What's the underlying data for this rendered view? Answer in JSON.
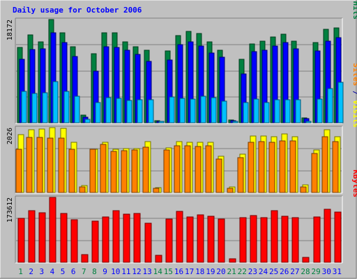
{
  "chart_data": {
    "type": "bar",
    "title": "Daily usage for October 2006",
    "categories": [
      "1",
      "2",
      "3",
      "4",
      "5",
      "6",
      "7",
      "8",
      "9",
      "10",
      "11",
      "12",
      "13",
      "14",
      "15",
      "16",
      "17",
      "18",
      "19",
      "20",
      "21",
      "22",
      "23",
      "24",
      "25",
      "26",
      "27",
      "28",
      "29",
      "30",
      "31"
    ],
    "weekend_days": [
      "1",
      "7",
      "8",
      "14",
      "15",
      "21",
      "22",
      "28",
      "29"
    ],
    "panels": [
      {
        "id": "hits",
        "ymax_label": "18172",
        "ymax": 18172,
        "series": [
          {
            "name": "Hits",
            "color": "#008040",
            "values": [
              13200,
              15500,
              14200,
              18172,
              15800,
              13400,
              1400,
              12100,
              15800,
              15900,
              14300,
              13400,
              12800,
              400,
              12700,
              15400,
              16100,
              15700,
              14300,
              12800,
              500,
              11200,
              13900,
              14400,
              15100,
              15600,
              14400,
              900,
              14100,
              16500,
              16700
            ]
          },
          {
            "name": "Files",
            "color": "#0000ff",
            "values": [
              11200,
              12900,
              13000,
              15800,
              14100,
              11700,
              1000,
              9100,
              13400,
              13200,
              12800,
              12000,
              10800,
              300,
              11000,
              13800,
              14300,
              13500,
              12300,
              11500,
              400,
              8600,
              12500,
              12800,
              13500,
              14100,
              13000,
              700,
              12600,
              14400,
              15000
            ]
          },
          {
            "name": "Pages",
            "color": "#00c0ff",
            "values": [
              5500,
              5200,
              5300,
              7300,
              5500,
              4700,
              600,
              3500,
              4400,
              4300,
              3900,
              4100,
              4100,
              200,
              4500,
              4300,
              4200,
              4700,
              4400,
              3800,
              200,
              3600,
              4200,
              3600,
              4000,
              4100,
              4100,
              300,
              4200,
              6000,
              7100
            ]
          }
        ]
      },
      {
        "id": "visits",
        "ymax_label": "2026",
        "ymax": 2026,
        "series": [
          {
            "name": "Visits",
            "color": "#ffff00",
            "values": [
              1800,
              1950,
              1980,
              2026,
              2010,
              1560,
              220,
              1360,
              1570,
              1350,
              1380,
              1370,
              1600,
              160,
              1390,
              1600,
              1560,
              1560,
              1570,
              1130,
              170,
              1190,
              1760,
              1760,
              1750,
              1840,
              1750,
              230,
              1320,
              1950,
              1750
            ]
          },
          {
            "name": "Sites",
            "color": "#ff8000",
            "values": [
              1350,
              1720,
              1720,
              1710,
              1700,
              1350,
              170,
              1350,
              1510,
              1290,
              1310,
              1320,
              1420,
              120,
              1320,
              1470,
              1470,
              1430,
              1460,
              1050,
              130,
              1100,
              1570,
              1600,
              1570,
              1620,
              1610,
              180,
              1220,
              1750,
              1600
            ]
          }
        ]
      },
      {
        "id": "kbytes",
        "ymax_label": "173612",
        "ymax": 173612,
        "series": [
          {
            "name": "KBytes",
            "color": "#ff0000",
            "values": [
              117000,
              138000,
              132000,
              173612,
              131000,
              113000,
              21000,
              110000,
              122000,
              139000,
              129000,
              130000,
              104000,
              18000,
              116000,
              136000,
              122000,
              127000,
              124000,
              116000,
              9000,
              120000,
              125000,
              120000,
              138000,
              123000,
              120000,
              13000,
              121000,
              142000,
              134000
            ]
          }
        ]
      }
    ],
    "right_labels": {
      "hits": [
        {
          "text": "Pages",
          "color": "#00c0ff"
        },
        {
          "text": " / ",
          "color": "#0000a0"
        },
        {
          "text": "Files",
          "color": "#0000ff"
        },
        {
          "text": " / ",
          "color": "#0000a0"
        },
        {
          "text": "Hits",
          "color": "#008040"
        }
      ],
      "visits": [
        {
          "text": "Sites",
          "color": "#ff8000"
        },
        {
          "text": " / ",
          "color": "#0000a0"
        },
        {
          "text": "Visits",
          "color": "#ffff00"
        }
      ],
      "kbytes": [
        {
          "text": "KBytes",
          "color": "#ff0000"
        }
      ]
    },
    "colors": {
      "background": "#c0c0c0",
      "title": "#0000ff",
      "axis_label": "#000000",
      "weekday_label": "#0000ff",
      "weekend_label": "#008040",
      "grid": "#808080"
    }
  }
}
